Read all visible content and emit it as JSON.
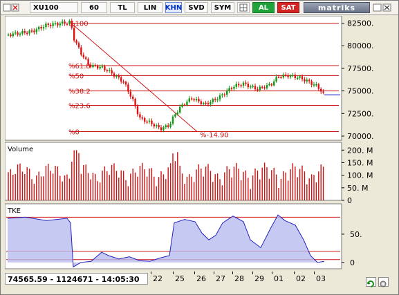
{
  "toolbar": {
    "symbol": "XU100",
    "period": "60",
    "currency": "TL",
    "scale": "LIN",
    "khn": "KHN",
    "svd": "SVD",
    "sym": "SYM",
    "buy": "AL",
    "sell": "SAT",
    "logo": "matriks"
  },
  "price_panel": {
    "y_ticks": [
      "82500.",
      "80000.",
      "77500.",
      "75000.",
      "72500.",
      "70000."
    ],
    "fib_labels": [
      "%100",
      "%61.8",
      "%50",
      "%38.2",
      "%23.6",
      "%0"
    ],
    "trend_label": "%-14.90"
  },
  "volume_panel": {
    "title": "Volume",
    "y_ticks": [
      "200. M",
      "150. M",
      "100. M",
      "50. M",
      "0"
    ]
  },
  "tke_panel": {
    "title": "TKE",
    "y_ticks": [
      "50.",
      "0"
    ]
  },
  "status": {
    "readout": "74565.59 - 1124671 - 14:05:30",
    "dates": [
      "22",
      "25",
      "26",
      "27",
      "28",
      "29",
      "01",
      "02",
      "03"
    ]
  },
  "colors": {
    "up": "#119911",
    "down": "#dd1111",
    "fib": "#cc1111",
    "accent": "#0000cc"
  },
  "chart_data": {
    "type": "candlestick",
    "x": [
      "22",
      "25",
      "26",
      "27",
      "28",
      "29",
      "01",
      "02",
      "03"
    ],
    "close_approx": [
      72000,
      74500,
      73800,
      75000,
      75800,
      75300,
      76700,
      76000,
      74565.59
    ],
    "ylim": [
      70000,
      83000
    ],
    "fib_levels": {
      "%100": 82500,
      "%61.8": 77800,
      "%50": 76700,
      "%38.2": 75000,
      "%23.6": 73400,
      "%0": 70500
    },
    "volume_ylim": [
      0,
      220
    ],
    "tke_ylim": [
      -10,
      100
    ]
  }
}
